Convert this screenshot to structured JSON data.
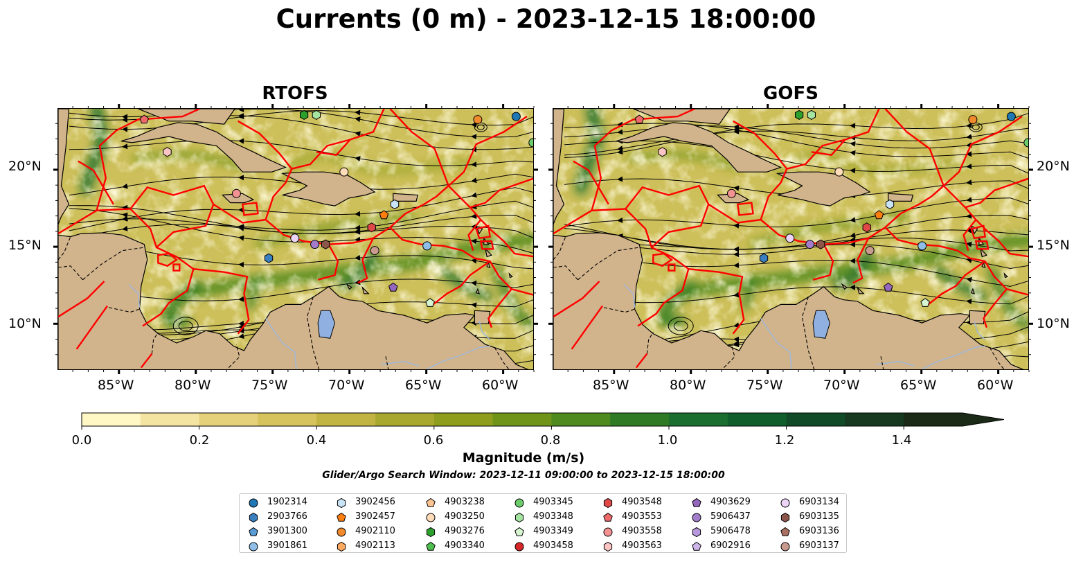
{
  "figure": {
    "title": "Currents (0 m) - 2023-12-15 18:00:00",
    "colorbar_label": "Magnitude (m/s)",
    "search_window": "Glider/Argo Search Window: 2023-12-11 09:00:00 to 2023-12-15 18:00:00"
  },
  "panels": [
    {
      "title": "RTOFS"
    },
    {
      "title": "GOFS"
    }
  ],
  "axes": {
    "lon_ticks": [
      "85°W",
      "80°W",
      "75°W",
      "70°W",
      "65°W",
      "60°W"
    ],
    "lon_values": [
      -85,
      -80,
      -75,
      -70,
      -65,
      -60
    ],
    "lat_ticks": [
      "20°N",
      "15°N",
      "10°N"
    ],
    "lat_values": [
      20,
      15,
      10
    ],
    "lon_range": [
      -89,
      -58
    ],
    "lat_range": [
      7,
      24
    ]
  },
  "colorbar": {
    "ticks": [
      "0.0",
      "0.2",
      "0.4",
      "0.6",
      "0.8",
      "1.0",
      "1.2",
      "1.4"
    ],
    "tick_values": [
      0.0,
      0.2,
      0.4,
      0.6,
      0.8,
      1.0,
      1.2,
      1.4
    ],
    "range": [
      0,
      1.5
    ],
    "extend": "max",
    "colors": [
      "#fff7c4",
      "#f3e4a2",
      "#e5d07c",
      "#d6c35d",
      "#c2b442",
      "#a9a82e",
      "#8e9e1c",
      "#6f9418",
      "#4e8a1e",
      "#2f7b25",
      "#1a6e2f",
      "#115e2d",
      "#114a27",
      "#16391f",
      "#1a2a16"
    ]
  },
  "map_colors": {
    "land": "#d2b48c",
    "lake": "#8fb0e0",
    "river": "#9fb8d8",
    "eez_lines": "#ff0000",
    "streamlines": "#000000"
  },
  "legend": {
    "columns": [
      [
        {
          "id": "1902314",
          "marker": "circle",
          "color": "#1f77b4"
        },
        {
          "id": "2903766",
          "marker": "hexagon",
          "color": "#3a7fc0"
        },
        {
          "id": "3901300",
          "marker": "pentagon",
          "color": "#5a9bd5"
        },
        {
          "id": "3901861",
          "marker": "circle",
          "color": "#8fbfe8"
        }
      ],
      [
        {
          "id": "3902456",
          "marker": "hexagon",
          "color": "#c9e4f7"
        },
        {
          "id": "3902457",
          "marker": "pentagon",
          "color": "#ff7f0e"
        },
        {
          "id": "4902110",
          "marker": "circle",
          "color": "#f08a2c"
        },
        {
          "id": "4902113",
          "marker": "hexagon",
          "color": "#ffaa60"
        }
      ],
      [
        {
          "id": "4903238",
          "marker": "pentagon",
          "color": "#fdc591"
        },
        {
          "id": "4903250",
          "marker": "circle",
          "color": "#ffdcb8"
        },
        {
          "id": "4903276",
          "marker": "hexagon",
          "color": "#2ca02c"
        },
        {
          "id": "4903340",
          "marker": "pentagon",
          "color": "#4fbf4f"
        }
      ],
      [
        {
          "id": "4903345",
          "marker": "circle",
          "color": "#6ccc6c"
        },
        {
          "id": "4903348",
          "marker": "hexagon",
          "color": "#a4e3a0"
        },
        {
          "id": "4903349",
          "marker": "pentagon",
          "color": "#d6f5d0"
        },
        {
          "id": "4903458",
          "marker": "circle",
          "color": "#d62728"
        }
      ],
      [
        {
          "id": "4903548",
          "marker": "hexagon",
          "color": "#e04848"
        },
        {
          "id": "4903553",
          "marker": "pentagon",
          "color": "#ec6a6a"
        },
        {
          "id": "4903558",
          "marker": "circle",
          "color": "#f29292"
        },
        {
          "id": "4903563",
          "marker": "hexagon",
          "color": "#fbc4c4"
        }
      ],
      [
        {
          "id": "4903629",
          "marker": "pentagon",
          "color": "#9467bd"
        },
        {
          "id": "5906437",
          "marker": "circle",
          "color": "#a37ccc"
        },
        {
          "id": "5906478",
          "marker": "hexagon",
          "color": "#b898dc"
        },
        {
          "id": "6902916",
          "marker": "pentagon",
          "color": "#cdb5ea"
        }
      ],
      [
        {
          "id": "6903134",
          "marker": "circle",
          "color": "#ecd4f6"
        },
        {
          "id": "6903135",
          "marker": "hexagon",
          "color": "#8c564b"
        },
        {
          "id": "6903136",
          "marker": "pentagon",
          "color": "#a86f62"
        },
        {
          "id": "6903137",
          "marker": "circle",
          "color": "#c99a8e"
        }
      ]
    ]
  },
  "floats": [
    {
      "id": "4903553",
      "lon": -83.4,
      "lat": 23.3
    },
    {
      "id": "4903276",
      "lon": -73.0,
      "lat": 23.6
    },
    {
      "id": "4903348",
      "lon": -72.2,
      "lat": 23.6
    },
    {
      "id": "4902110",
      "lon": -61.7,
      "lat": 23.3
    },
    {
      "id": "1902314",
      "lon": -59.2,
      "lat": 23.5
    },
    {
      "id": "4903345",
      "lon": -58.1,
      "lat": 21.8
    },
    {
      "id": "4903563",
      "lon": -81.9,
      "lat": 21.2
    },
    {
      "id": "4903250",
      "lon": -70.4,
      "lat": 19.9
    },
    {
      "id": "4903558",
      "lon": -77.4,
      "lat": 18.5
    },
    {
      "id": "3902456",
      "lon": -67.1,
      "lat": 17.8
    },
    {
      "id": "3902457",
      "lon": -67.8,
      "lat": 17.1
    },
    {
      "id": "4903548",
      "lon": -68.6,
      "lat": 16.3
    },
    {
      "id": "6903134",
      "lon": -73.6,
      "lat": 15.6
    },
    {
      "id": "5906437",
      "lon": -72.3,
      "lat": 15.2
    },
    {
      "id": "6903135",
      "lon": -71.6,
      "lat": 15.2
    },
    {
      "id": "3901861",
      "lon": -65.0,
      "lat": 15.1
    },
    {
      "id": "6903137",
      "lon": -68.4,
      "lat": 14.8
    },
    {
      "id": "2903766",
      "lon": -75.3,
      "lat": 14.3
    },
    {
      "id": "4903629",
      "lon": -67.2,
      "lat": 12.4
    },
    {
      "id": "4903349",
      "lon": -64.8,
      "lat": 11.4
    }
  ]
}
